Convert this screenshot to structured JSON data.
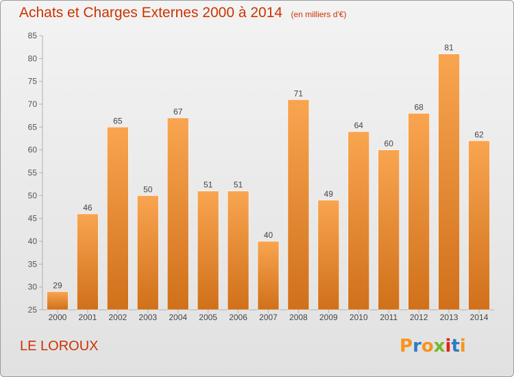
{
  "header": {
    "title": "Achats et Charges Externes 2000 à 2014",
    "subtitle": "(en milliers d'€)"
  },
  "footer": {
    "commune": "LE LOROUX",
    "logo_text": "Proxiti",
    "logo_colors": [
      "#f7941d",
      "#2e7bc4",
      "#f7941d",
      "#76b82a",
      "#e2231a",
      "#2e7bc4",
      "#f7941d"
    ]
  },
  "colors": {
    "title": "#cc3300",
    "bar_top": "#f9a550",
    "bar_bottom": "#d0701a",
    "axis": "#b0b0b0"
  },
  "chart_data": {
    "type": "bar",
    "categories": [
      "2000",
      "2001",
      "2002",
      "2003",
      "2004",
      "2005",
      "2006",
      "2007",
      "2008",
      "2009",
      "2010",
      "2011",
      "2012",
      "2013",
      "2014"
    ],
    "values": [
      29,
      46,
      65,
      50,
      67,
      51,
      51,
      40,
      71,
      49,
      64,
      60,
      68,
      81,
      62
    ],
    "ylim": [
      25,
      85
    ],
    "yticks": [
      25,
      30,
      35,
      40,
      45,
      50,
      55,
      60,
      65,
      70,
      75,
      80,
      85
    ],
    "title": "Achats et Charges Externes 2000 à 2014",
    "xlabel": "",
    "ylabel": "",
    "grid": false
  }
}
